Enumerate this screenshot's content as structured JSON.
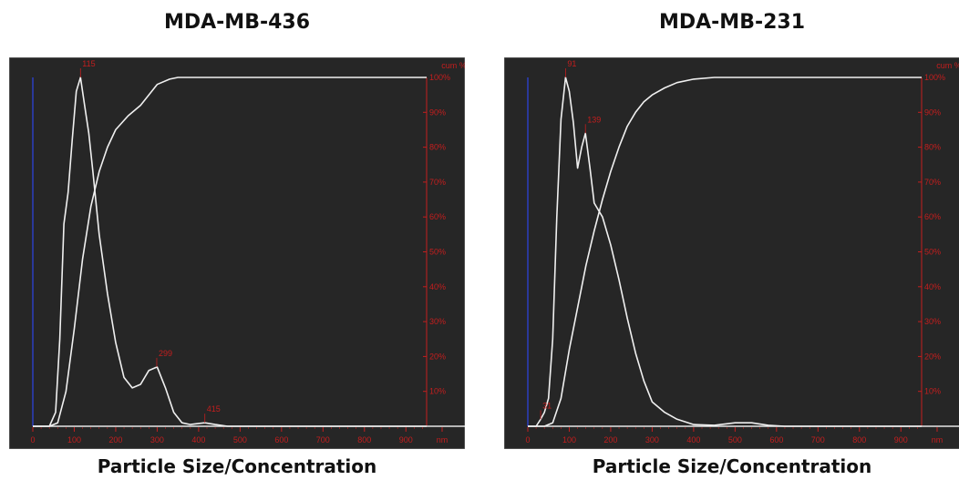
{
  "panels": [
    {
      "title": "MDA-MB-436",
      "xcaption": "Particle Size/Concentration"
    },
    {
      "title": "MDA-MB-231",
      "xcaption": "Particle Size/Concentration"
    }
  ],
  "chart_data": [
    {
      "type": "line",
      "title": "MDA-MB-436",
      "xlabel": "nm",
      "y2label": "cum %",
      "xlim": [
        0,
        950
      ],
      "x_ticks": [
        "0",
        "100",
        "200",
        "300",
        "400",
        "500",
        "600",
        "700",
        "800",
        "900",
        "nm"
      ],
      "y2_ticks": [
        "10%",
        "20%",
        "30%",
        "40%",
        "50%",
        "60%",
        "70%",
        "80%",
        "90%",
        "100%"
      ],
      "grid": false,
      "peak_labels": [
        {
          "x": 115,
          "label": "115"
        },
        {
          "x": 299,
          "label": "299"
        },
        {
          "x": 415,
          "label": "415"
        }
      ],
      "series": [
        {
          "role": "concentration",
          "x": [
            0,
            40,
            55,
            65,
            75,
            85,
            95,
            105,
            115,
            125,
            135,
            145,
            160,
            180,
            200,
            220,
            240,
            260,
            280,
            300,
            320,
            340,
            360,
            380,
            400,
            415,
            440,
            470,
            950
          ],
          "y": [
            0,
            0,
            4,
            25,
            58,
            67,
            82,
            96,
            100,
            92,
            84,
            73,
            55,
            38,
            24,
            14,
            11,
            12,
            16,
            17,
            11,
            4,
            1,
            0.5,
            0.8,
            1,
            0.5,
            0,
            0
          ]
        },
        {
          "role": "cumulative",
          "x": [
            0,
            40,
            60,
            80,
            100,
            120,
            140,
            160,
            180,
            200,
            230,
            260,
            300,
            330,
            350,
            400,
            450,
            950
          ],
          "y": [
            0,
            0,
            1,
            10,
            28,
            48,
            63,
            73,
            80,
            85,
            89,
            92,
            98,
            99.5,
            100,
            100,
            100,
            100
          ]
        }
      ]
    },
    {
      "type": "line",
      "title": "MDA-MB-231",
      "xlabel": "nm",
      "y2label": "cum %",
      "xlim": [
        0,
        950
      ],
      "x_ticks": [
        "0",
        "100",
        "200",
        "300",
        "400",
        "500",
        "600",
        "700",
        "800",
        "900",
        "nm"
      ],
      "y2_ticks": [
        "10%",
        "20%",
        "30%",
        "40%",
        "50%",
        "60%",
        "70%",
        "80%",
        "90%",
        "100%"
      ],
      "grid": false,
      "peak_labels": [
        {
          "x": 31,
          "label": "31"
        },
        {
          "x": 91,
          "label": "91"
        },
        {
          "x": 139,
          "label": "139"
        }
      ],
      "series": [
        {
          "role": "concentration",
          "x": [
            0,
            20,
            31,
            40,
            50,
            60,
            70,
            80,
            91,
            100,
            110,
            120,
            130,
            139,
            150,
            160,
            170,
            180,
            200,
            220,
            240,
            260,
            280,
            300,
            330,
            360,
            400,
            450,
            500,
            540,
            580,
            620,
            950
          ],
          "y": [
            0,
            0,
            2,
            4,
            8,
            25,
            60,
            88,
            100,
            96,
            87,
            74,
            80,
            84,
            74,
            64,
            62,
            60,
            52,
            42,
            31,
            21,
            13,
            7,
            4,
            2,
            0.5,
            0.3,
            1,
            1,
            0.3,
            0,
            0
          ]
        },
        {
          "role": "cumulative",
          "x": [
            0,
            40,
            60,
            80,
            100,
            120,
            140,
            160,
            180,
            200,
            220,
            240,
            260,
            280,
            300,
            330,
            360,
            400,
            450,
            500,
            950
          ],
          "y": [
            0,
            0,
            1,
            8,
            22,
            34,
            46,
            56,
            65,
            73,
            80,
            86,
            90,
            93,
            95,
            97,
            98.5,
            99.5,
            100,
            100,
            100
          ]
        }
      ]
    }
  ]
}
